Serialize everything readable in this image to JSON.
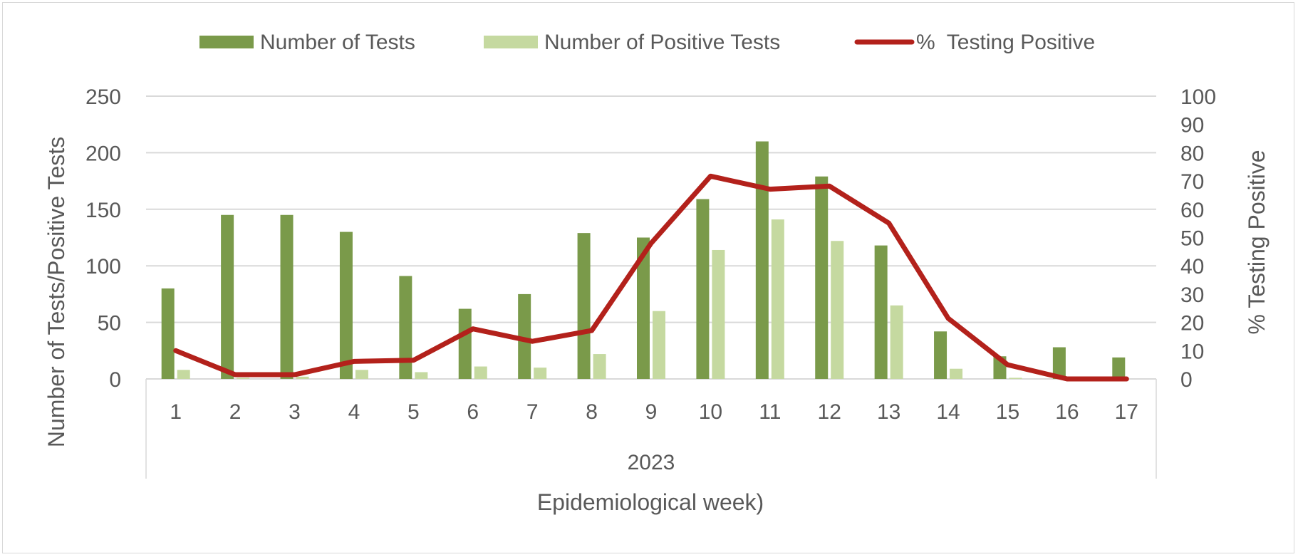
{
  "chart_data": {
    "type": "bar",
    "categories": [
      "1",
      "2",
      "3",
      "4",
      "5",
      "6",
      "7",
      "8",
      "9",
      "10",
      "11",
      "12",
      "13",
      "14",
      "15",
      "16",
      "17"
    ],
    "group_label": "2023",
    "xlabel": "Epidemiological week)",
    "ylabel": "Number  of Tests/Positive Tests",
    "y2label": "% Testing Positive",
    "ylim": [
      0,
      250
    ],
    "yticks": [
      "0",
      "50",
      "100",
      "150",
      "200",
      "250"
    ],
    "y2lim": [
      0,
      100
    ],
    "y2ticks": [
      "0",
      "10",
      "20",
      "30",
      "40",
      "50",
      "60",
      "70",
      "80",
      "90",
      "100"
    ],
    "grid": true,
    "legend_position": "top",
    "series": [
      {
        "name": "Number of Tests",
        "type": "bar",
        "axis": "left",
        "color": "#7a9a4a",
        "values": [
          80,
          145,
          145,
          130,
          91,
          62,
          75,
          129,
          125,
          159,
          210,
          179,
          118,
          42,
          20,
          28,
          19
        ]
      },
      {
        "name": "Number of Positive Tests",
        "type": "bar",
        "axis": "left",
        "color": "#c5d9a0",
        "values": [
          8,
          1,
          2,
          8,
          6,
          11,
          10,
          22,
          60,
          114,
          141,
          122,
          65,
          9,
          1,
          0,
          0
        ]
      },
      {
        "name": "%  Testing Positive",
        "type": "line",
        "axis": "right",
        "color": "#b3211b",
        "values": [
          10,
          1.5,
          1.5,
          6.2,
          6.6,
          17.7,
          13.3,
          17.1,
          48,
          71.7,
          67.1,
          68.2,
          55.1,
          21.4,
          5,
          0,
          0
        ]
      }
    ]
  }
}
